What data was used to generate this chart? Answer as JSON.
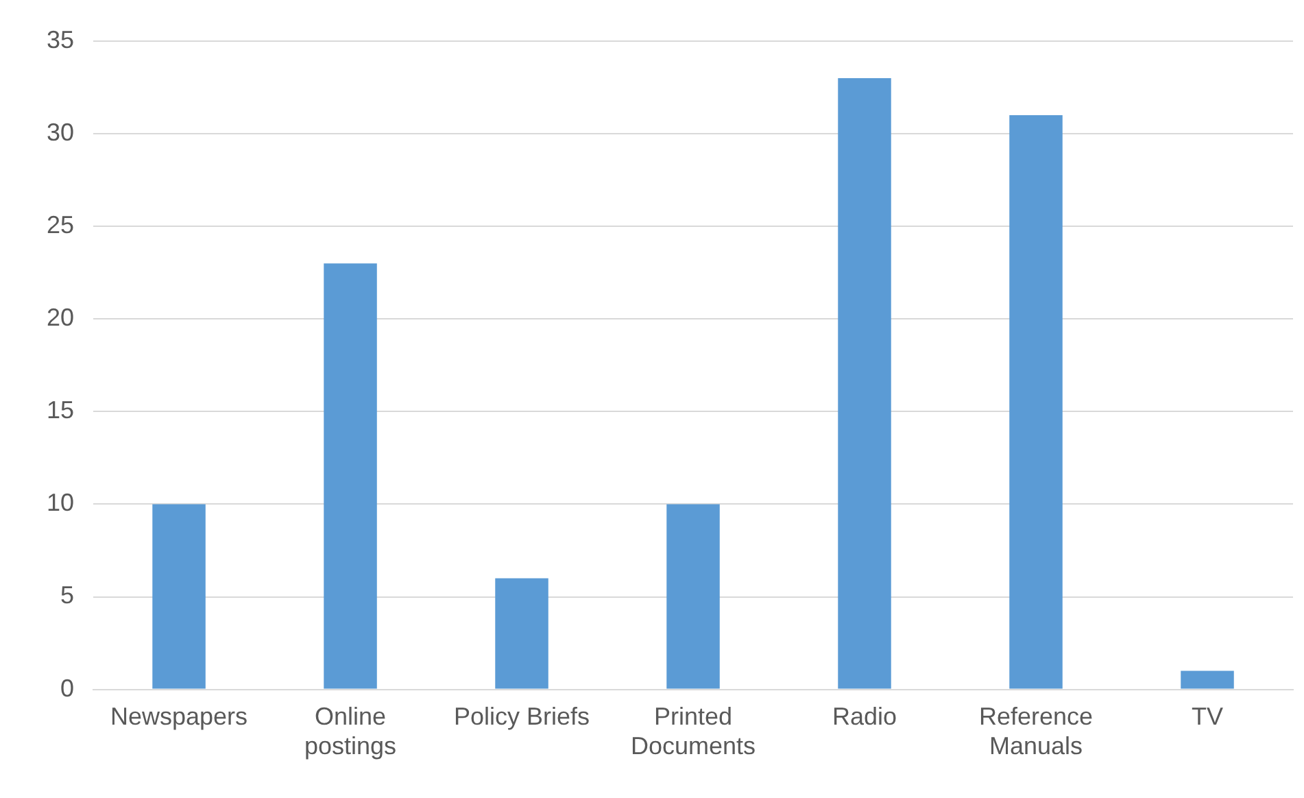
{
  "chart_data": {
    "type": "bar",
    "categories": [
      "Newspapers",
      "Online postings",
      "Policy Briefs",
      "Printed Documents",
      "Radio",
      "Reference Manuals",
      "TV"
    ],
    "values": [
      10,
      23,
      6,
      10,
      33,
      31,
      1
    ],
    "color": "#5b9bd5",
    "ylim": [
      0,
      35
    ],
    "yticks": [
      0,
      5,
      10,
      15,
      20,
      25,
      30,
      35
    ],
    "grid": "y",
    "legend": false
  }
}
